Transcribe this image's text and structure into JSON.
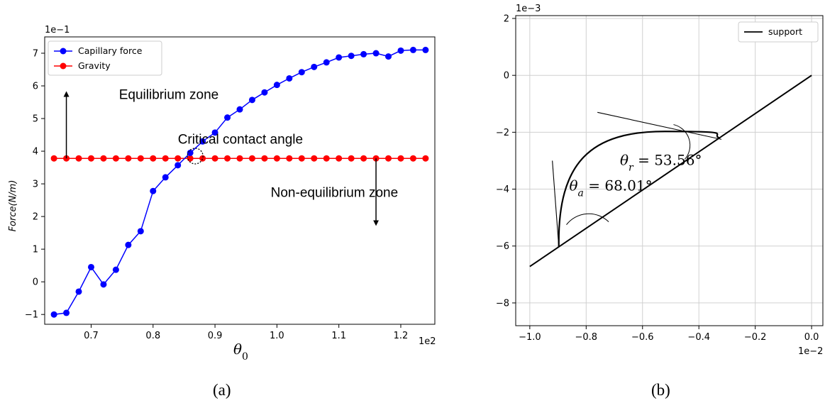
{
  "chart_data": [
    {
      "type": "line",
      "panel_label": "(a)",
      "xlabel": "θ0",
      "ylabel": "Force(N/m)",
      "x_offset_text": "1e2",
      "y_offset_text": "1e−1",
      "xlim": [
        0.625,
        1.255
      ],
      "ylim": [
        -1.3,
        7.5
      ],
      "xticks": [
        0.7,
        0.8,
        0.9,
        1.0,
        1.1,
        1.2
      ],
      "xtick_labels": [
        "0.7",
        "0.8",
        "0.9",
        "1.0",
        "1.1",
        "1.2"
      ],
      "yticks": [
        -1,
        0,
        1,
        2,
        3,
        4,
        5,
        6,
        7
      ],
      "ytick_labels": [
        "−1",
        "0",
        "1",
        "2",
        "3",
        "4",
        "5",
        "6",
        "7"
      ],
      "grid": false,
      "legend_position": "top-left",
      "series": [
        {
          "name": "Capillary force",
          "color": "#0000ff",
          "x": [
            0.64,
            0.66,
            0.68,
            0.7,
            0.72,
            0.74,
            0.76,
            0.78,
            0.8,
            0.82,
            0.84,
            0.86,
            0.88,
            0.9,
            0.92,
            0.94,
            0.96,
            0.98,
            1.0,
            1.02,
            1.04,
            1.06,
            1.08,
            1.1,
            1.12,
            1.14,
            1.16,
            1.18,
            1.2,
            1.22,
            1.24
          ],
          "y": [
            -1.0,
            -0.95,
            -0.3,
            0.45,
            -0.08,
            0.37,
            1.13,
            1.55,
            2.78,
            3.2,
            3.57,
            3.95,
            4.3,
            4.57,
            5.03,
            5.28,
            5.57,
            5.8,
            6.03,
            6.23,
            6.42,
            6.58,
            6.72,
            6.87,
            6.92,
            6.97,
            7.0,
            6.9,
            7.08,
            7.1,
            7.1
          ]
        },
        {
          "name": "Gravity",
          "color": "#ff0000",
          "x": [
            0.64,
            0.66,
            0.68,
            0.7,
            0.72,
            0.74,
            0.76,
            0.78,
            0.8,
            0.82,
            0.84,
            0.86,
            0.88,
            0.9,
            0.92,
            0.94,
            0.96,
            0.98,
            1.0,
            1.02,
            1.04,
            1.06,
            1.08,
            1.1,
            1.12,
            1.14,
            1.16,
            1.18,
            1.2,
            1.22,
            1.24
          ],
          "y": [
            3.78,
            3.78,
            3.78,
            3.78,
            3.78,
            3.78,
            3.78,
            3.78,
            3.78,
            3.78,
            3.78,
            3.78,
            3.78,
            3.78,
            3.78,
            3.78,
            3.78,
            3.78,
            3.78,
            3.78,
            3.78,
            3.78,
            3.78,
            3.78,
            3.78,
            3.78,
            3.78,
            3.78,
            3.78,
            3.78,
            3.78
          ]
        }
      ],
      "annotations": [
        {
          "text": "Equilibrium zone",
          "x": 0.745,
          "y": 5.6
        },
        {
          "text": "Critical contact angle",
          "x": 0.84,
          "y": 4.23
        },
        {
          "text": "Non-equilibrium zone",
          "x": 0.99,
          "y": 2.6
        }
      ],
      "arrows": [
        {
          "x": 0.66,
          "from_y": 3.78,
          "to_y": 5.75
        },
        {
          "x": 1.16,
          "from_y": 3.78,
          "to_y": 1.8
        }
      ],
      "highlight": {
        "x": 0.868,
        "y": 3.85,
        "style": "dotted-circle"
      }
    },
    {
      "type": "line",
      "panel_label": "(b)",
      "x_offset_text": "1e−2",
      "y_offset_text": "1e−3",
      "xlim": [
        -1.05,
        0.04
      ],
      "ylim": [
        -8.8,
        2.1
      ],
      "xticks": [
        -1.0,
        -0.8,
        -0.6,
        -0.4,
        -0.2,
        0.0
      ],
      "xtick_labels": [
        "−1.0",
        "−0.8",
        "−0.6",
        "−0.4",
        "−0.2",
        "0.0"
      ],
      "yticks": [
        -8,
        -6,
        -4,
        -2,
        0,
        2
      ],
      "ytick_labels": [
        "−8",
        "−6",
        "−4",
        "−2",
        "0",
        "2"
      ],
      "grid": true,
      "legend_position": "top-right",
      "series": [
        {
          "name": "support",
          "color": "#000000",
          "x": [
            -1.0,
            0.0
          ],
          "y": [
            -6.72,
            0.0
          ]
        }
      ],
      "droplet": {
        "color": "#000000",
        "left": [
          -0.897,
          -6.03
        ],
        "right": [
          -0.328,
          -2.2
        ],
        "apex": [
          -0.52,
          -1.97
        ]
      },
      "tangents": [
        {
          "x": [
            -0.897,
            -0.92
          ],
          "y": [
            -6.03,
            -3.0
          ]
        },
        {
          "x": [
            -0.32,
            -0.76
          ],
          "y": [
            -2.25,
            -1.3
          ]
        }
      ],
      "angle_labels": [
        {
          "symbol": "θ",
          "sub": "a",
          "value_text": " = 68.01°",
          "x": -0.86,
          "y": -4.05
        },
        {
          "symbol": "θ",
          "sub": "r",
          "value_text": " = 53.56°",
          "x": -0.68,
          "y": -3.15
        }
      ]
    }
  ]
}
